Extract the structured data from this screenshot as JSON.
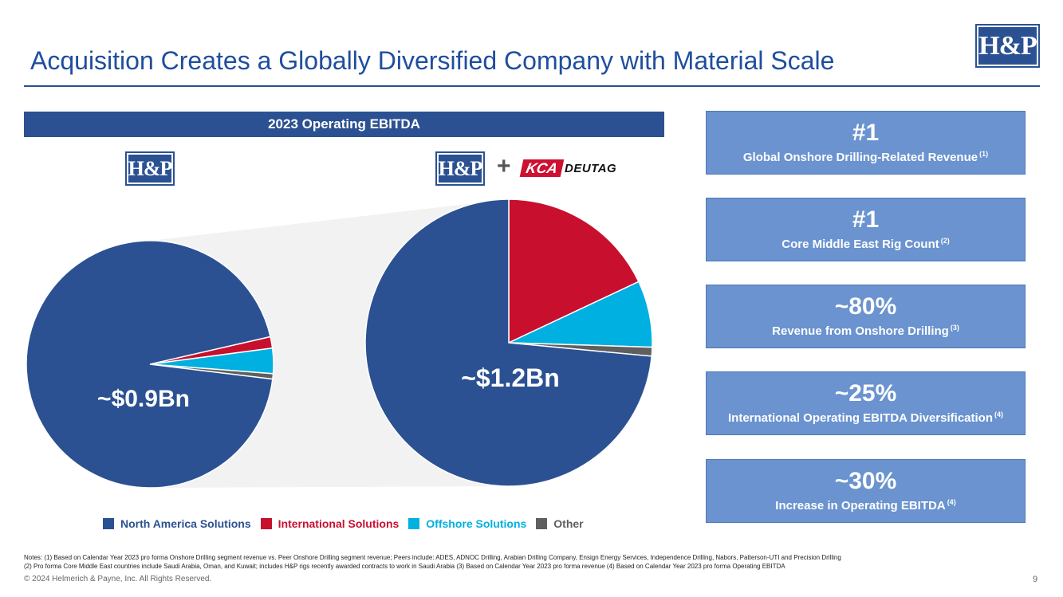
{
  "title": "Acquisition Creates a Globally Diversified Company with Material Scale",
  "logo_text": "H&P",
  "kca_logo": {
    "box": "KCA",
    "text": "DEUTAG"
  },
  "plus_sign": "+",
  "colors": {
    "north_america": "#2b5192",
    "international": "#c8102e",
    "offshore": "#00b0e0",
    "other": "#5f5f5f",
    "callout_fill": "#6a93cf",
    "header_fill": "#2b5192"
  },
  "chart_data": {
    "type": "pie",
    "title": "2023 Operating EBITDA",
    "legend": [
      "North America Solutions",
      "International Solutions",
      "Offshore Solutions",
      "Other"
    ],
    "charts": [
      {
        "name": "H&P",
        "label": "~$0.9Bn",
        "slices": [
          {
            "name": "North America Solutions",
            "value": 94.5
          },
          {
            "name": "International Solutions",
            "value": 1.5
          },
          {
            "name": "Offshore Solutions",
            "value": 3.3
          },
          {
            "name": "Other",
            "value": 0.7
          }
        ]
      },
      {
        "name": "H&P + KCA Deutag",
        "label": "~$1.2Bn",
        "slices": [
          {
            "name": "North America Solutions",
            "value": 73.5
          },
          {
            "name": "International Solutions",
            "value": 18.0
          },
          {
            "name": "Offshore Solutions",
            "value": 7.5
          },
          {
            "name": "Other",
            "value": 1.0
          }
        ]
      }
    ]
  },
  "stats": [
    {
      "big": "#1",
      "small": "Global Onshore Drilling-Related Revenue",
      "note": "(1)"
    },
    {
      "big": "#1",
      "small": "Core Middle East Rig Count",
      "note": "(2)"
    },
    {
      "big": "~80%",
      "small": "Revenue from Onshore Drilling",
      "note": "(3)"
    },
    {
      "big": "~25%",
      "small": "International Operating EBITDA Diversification",
      "note": "(4)"
    },
    {
      "big": "~30%",
      "small": "Increase in Operating EBITDA",
      "note": "(4)"
    }
  ],
  "notes": {
    "line1": "Notes: (1) Based on Calendar Year 2023 pro forma Onshore Drilling segment revenue vs. Peer Onshore Drilling segment revenue; Peers include: ADES, ADNOC Drilling, Arabian Drilling Company, Ensign Energy Services, Independence Drilling, Nabors, Patterson-UTI and Precision Drilling",
    "line2": "(2) Pro forma Core Middle East countries include Saudi Arabia, Oman, and Kuwait; includes H&P rigs recently awarded contracts to work in Saudi Arabia (3) Based on Calendar Year 2023 pro forma revenue (4) Based on Calendar Year 2023 pro forma Operating EBITDA"
  },
  "footer": "© 2024 Helmerich & Payne, Inc.  All Rights Reserved.",
  "page_number": "9"
}
